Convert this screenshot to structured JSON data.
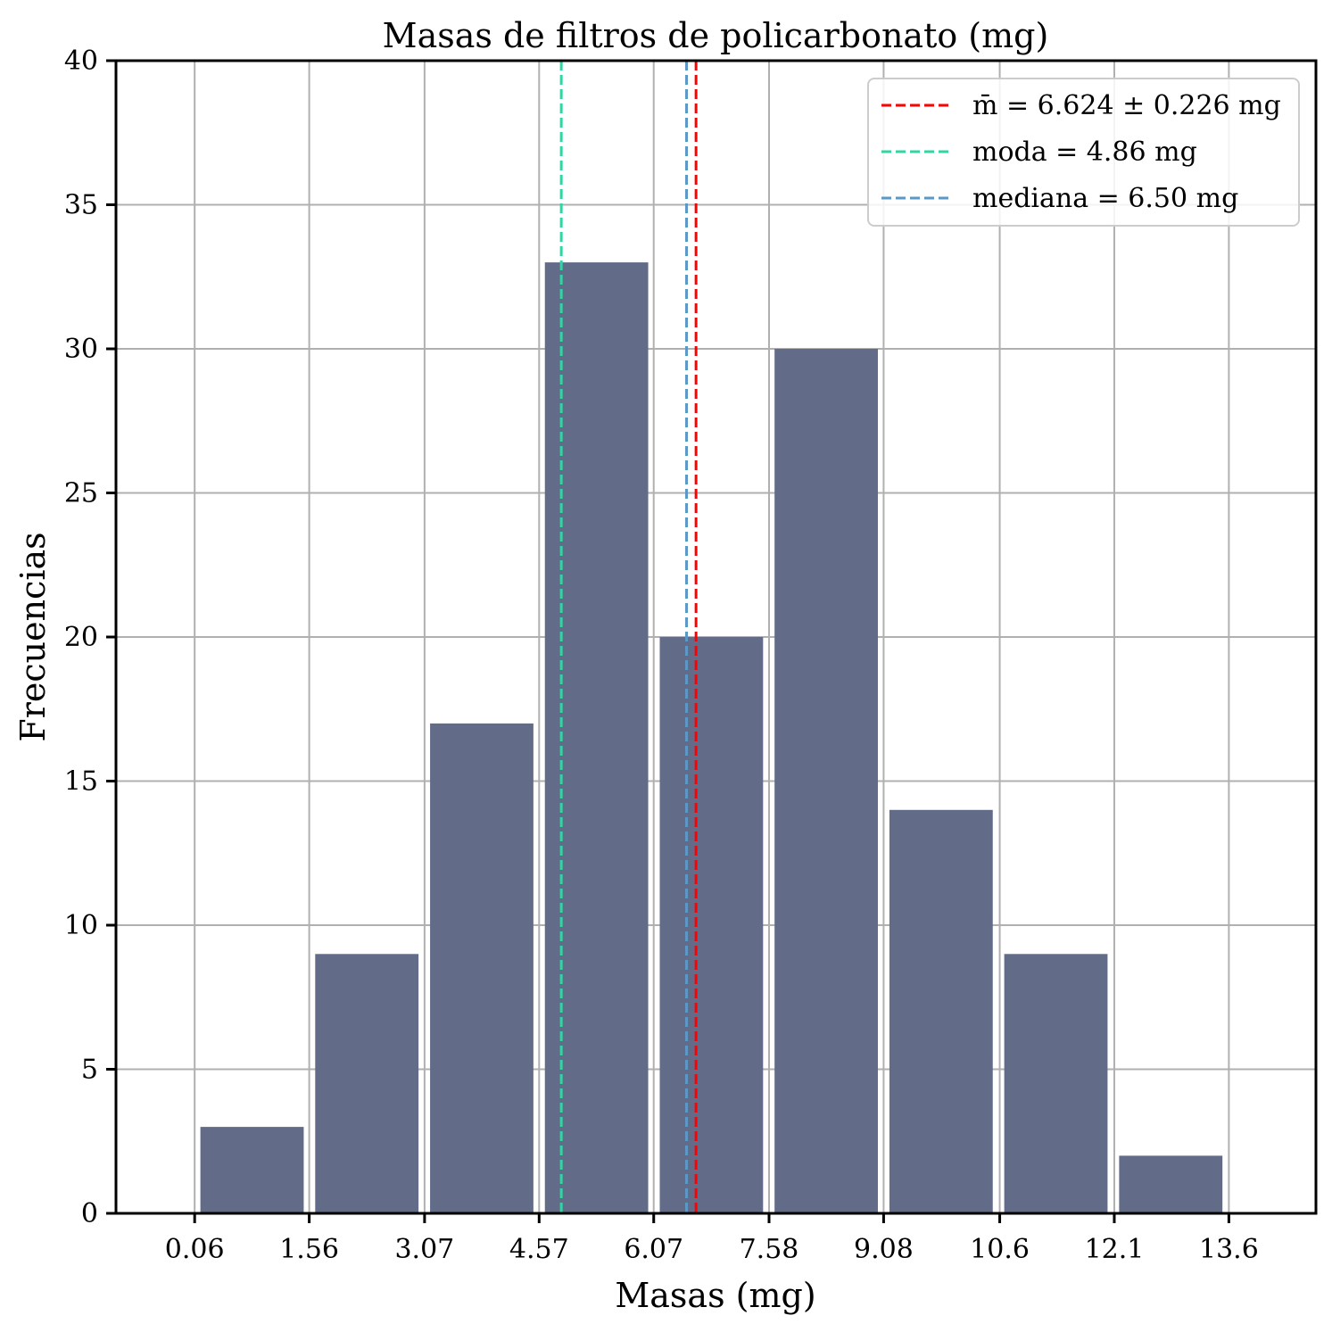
{
  "chart_data": {
    "type": "bar",
    "title": "Masas de filtros de policarbonato (mg)",
    "xlabel": "Masas (mg)",
    "ylabel": "Frecuencias",
    "xlim": [
      -0.97,
      14.74
    ],
    "ylim": [
      0,
      40
    ],
    "grid": true,
    "legend_position": "top-right",
    "x_ticks": [
      0.06,
      1.56,
      3.07,
      4.57,
      6.07,
      7.58,
      9.08,
      10.6,
      12.1,
      13.6
    ],
    "x_tick_labels": [
      "0.06",
      "1.56",
      "3.07",
      "4.57",
      "6.07",
      "7.58",
      "9.08",
      "10.6",
      "12.1",
      "13.6"
    ],
    "y_ticks": [
      0,
      5,
      10,
      15,
      20,
      25,
      30,
      35,
      40
    ],
    "y_tick_labels": [
      "0",
      "5",
      "10",
      "15",
      "20",
      "25",
      "30",
      "35",
      "40"
    ],
    "bin_edges": [
      0.06,
      1.563,
      3.067,
      4.57,
      6.074,
      7.577,
      9.081,
      10.584,
      12.088,
      13.591
    ],
    "bin_width": 1.503,
    "values": [
      3,
      9,
      17,
      33,
      20,
      30,
      14,
      9,
      2
    ],
    "bar_color": "#626c89",
    "reference_lines": [
      {
        "name": "mean",
        "label": "m̄ = 6.624 ± 0.226 mg",
        "value": 6.624,
        "color": "#ff0000",
        "style": "dashed"
      },
      {
        "name": "mode",
        "label": "moda = 4.86 mg",
        "value": 4.86,
        "color": "#2fd6a3",
        "style": "dashed"
      },
      {
        "name": "median",
        "label": "mediana = 6.50 mg",
        "value": 6.5,
        "color": "#5b98c6",
        "style": "dashed"
      }
    ]
  }
}
